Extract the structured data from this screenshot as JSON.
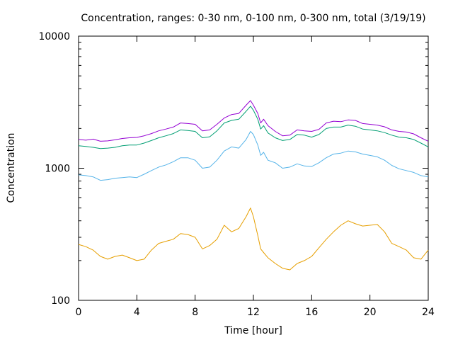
{
  "chart_data": {
    "type": "line",
    "title": "Concentration, ranges: 0-30 nm, 0-100 nm, 0-300 nm, total (3/19/19)",
    "xlabel": "Time [hour]",
    "ylabel": "Concentration",
    "xlim": [
      0,
      24
    ],
    "ylim": [
      100,
      10000
    ],
    "yscale": "log",
    "xticks": [
      0,
      4,
      8,
      12,
      16,
      20,
      24
    ],
    "yticks": [
      100,
      1000,
      10000
    ],
    "ytick_labels": [
      "100",
      "1000",
      "10000"
    ],
    "grid": false,
    "legend": "none",
    "series": [
      {
        "color": "#9400d3",
        "x": [
          0,
          0.5,
          1,
          1.5,
          2,
          2.5,
          3,
          3.5,
          4,
          4.5,
          5,
          5.5,
          6,
          6.5,
          7,
          7.5,
          8,
          8.5,
          9,
          9.5,
          10,
          10.5,
          11,
          11.5,
          11.8,
          12,
          12.3,
          12.5,
          12.7,
          13,
          13.5,
          14,
          14.5,
          15,
          15.5,
          16,
          16.5,
          17,
          17.5,
          18,
          18.5,
          19,
          19.5,
          20,
          20.5,
          21,
          21.5,
          22,
          22.5,
          23,
          23.5,
          24
        ],
        "y": [
          1650,
          1630,
          1660,
          1600,
          1610,
          1640,
          1680,
          1700,
          1710,
          1760,
          1830,
          1920,
          1980,
          2050,
          2200,
          2180,
          2150,
          1920,
          1950,
          2150,
          2400,
          2550,
          2600,
          3000,
          3250,
          3000,
          2600,
          2200,
          2350,
          2100,
          1900,
          1760,
          1780,
          1950,
          1920,
          1900,
          1970,
          2200,
          2270,
          2250,
          2320,
          2300,
          2180,
          2150,
          2120,
          2060,
          1950,
          1900,
          1880,
          1820,
          1700,
          1600
        ]
      },
      {
        "color": "#009e73",
        "x": [
          0,
          0.5,
          1,
          1.5,
          2,
          2.5,
          3,
          3.5,
          4,
          4.5,
          5,
          5.5,
          6,
          6.5,
          7,
          7.5,
          8,
          8.5,
          9,
          9.5,
          10,
          10.5,
          11,
          11.5,
          11.8,
          12,
          12.3,
          12.5,
          12.7,
          13,
          13.5,
          14,
          14.5,
          15,
          15.5,
          16,
          16.5,
          17,
          17.5,
          18,
          18.5,
          19,
          19.5,
          20,
          20.5,
          21,
          21.5,
          22,
          22.5,
          23,
          23.5,
          24
        ],
        "y": [
          1480,
          1460,
          1440,
          1410,
          1420,
          1440,
          1480,
          1500,
          1500,
          1550,
          1620,
          1700,
          1760,
          1830,
          1950,
          1930,
          1900,
          1700,
          1730,
          1920,
          2200,
          2300,
          2350,
          2700,
          2950,
          2750,
          2350,
          1980,
          2100,
          1850,
          1700,
          1620,
          1650,
          1800,
          1780,
          1720,
          1800,
          2000,
          2050,
          2050,
          2120,
          2080,
          1980,
          1950,
          1920,
          1860,
          1780,
          1720,
          1700,
          1650,
          1550,
          1450
        ]
      },
      {
        "color": "#56b4e9",
        "x": [
          0,
          0.5,
          1,
          1.5,
          2,
          2.5,
          3,
          3.5,
          4,
          4.5,
          5,
          5.5,
          6,
          6.5,
          7,
          7.5,
          8,
          8.5,
          9,
          9.5,
          10,
          10.5,
          11,
          11.5,
          11.8,
          12,
          12.3,
          12.5,
          12.7,
          13,
          13.5,
          14,
          14.5,
          15,
          15.5,
          16,
          16.5,
          17,
          17.5,
          18,
          18.5,
          19,
          19.5,
          20,
          20.5,
          21,
          21.5,
          22,
          22.5,
          23,
          23.5,
          24
        ],
        "y": [
          890,
          880,
          860,
          810,
          820,
          840,
          850,
          860,
          850,
          900,
          960,
          1020,
          1060,
          1120,
          1200,
          1200,
          1150,
          1000,
          1020,
          1150,
          1350,
          1450,
          1420,
          1650,
          1900,
          1800,
          1500,
          1250,
          1320,
          1150,
          1100,
          1000,
          1020,
          1080,
          1040,
          1030,
          1100,
          1200,
          1280,
          1300,
          1350,
          1330,
          1280,
          1250,
          1220,
          1150,
          1050,
          990,
          960,
          930,
          880,
          860
        ]
      },
      {
        "color": "#e69f00",
        "x": [
          0,
          0.5,
          1,
          1.5,
          2,
          2.5,
          3,
          3.5,
          4,
          4.5,
          5,
          5.5,
          6,
          6.5,
          7,
          7.5,
          8,
          8.5,
          9,
          9.5,
          10,
          10.5,
          11,
          11.5,
          11.8,
          12,
          12.3,
          12.5,
          12.7,
          13,
          13.5,
          14,
          14.5,
          15,
          15.5,
          16,
          16.5,
          17,
          17.5,
          18,
          18.5,
          19,
          19.5,
          20,
          20.5,
          21,
          21.5,
          22,
          22.5,
          23,
          23.5,
          24
        ],
        "y": [
          265,
          255,
          240,
          215,
          205,
          215,
          220,
          210,
          200,
          205,
          240,
          270,
          280,
          290,
          320,
          315,
          300,
          245,
          260,
          290,
          370,
          330,
          350,
          430,
          500,
          430,
          310,
          245,
          230,
          210,
          190,
          175,
          170,
          190,
          200,
          215,
          250,
          290,
          330,
          370,
          400,
          380,
          365,
          370,
          375,
          330,
          270,
          255,
          240,
          210,
          205,
          240
        ]
      }
    ]
  }
}
